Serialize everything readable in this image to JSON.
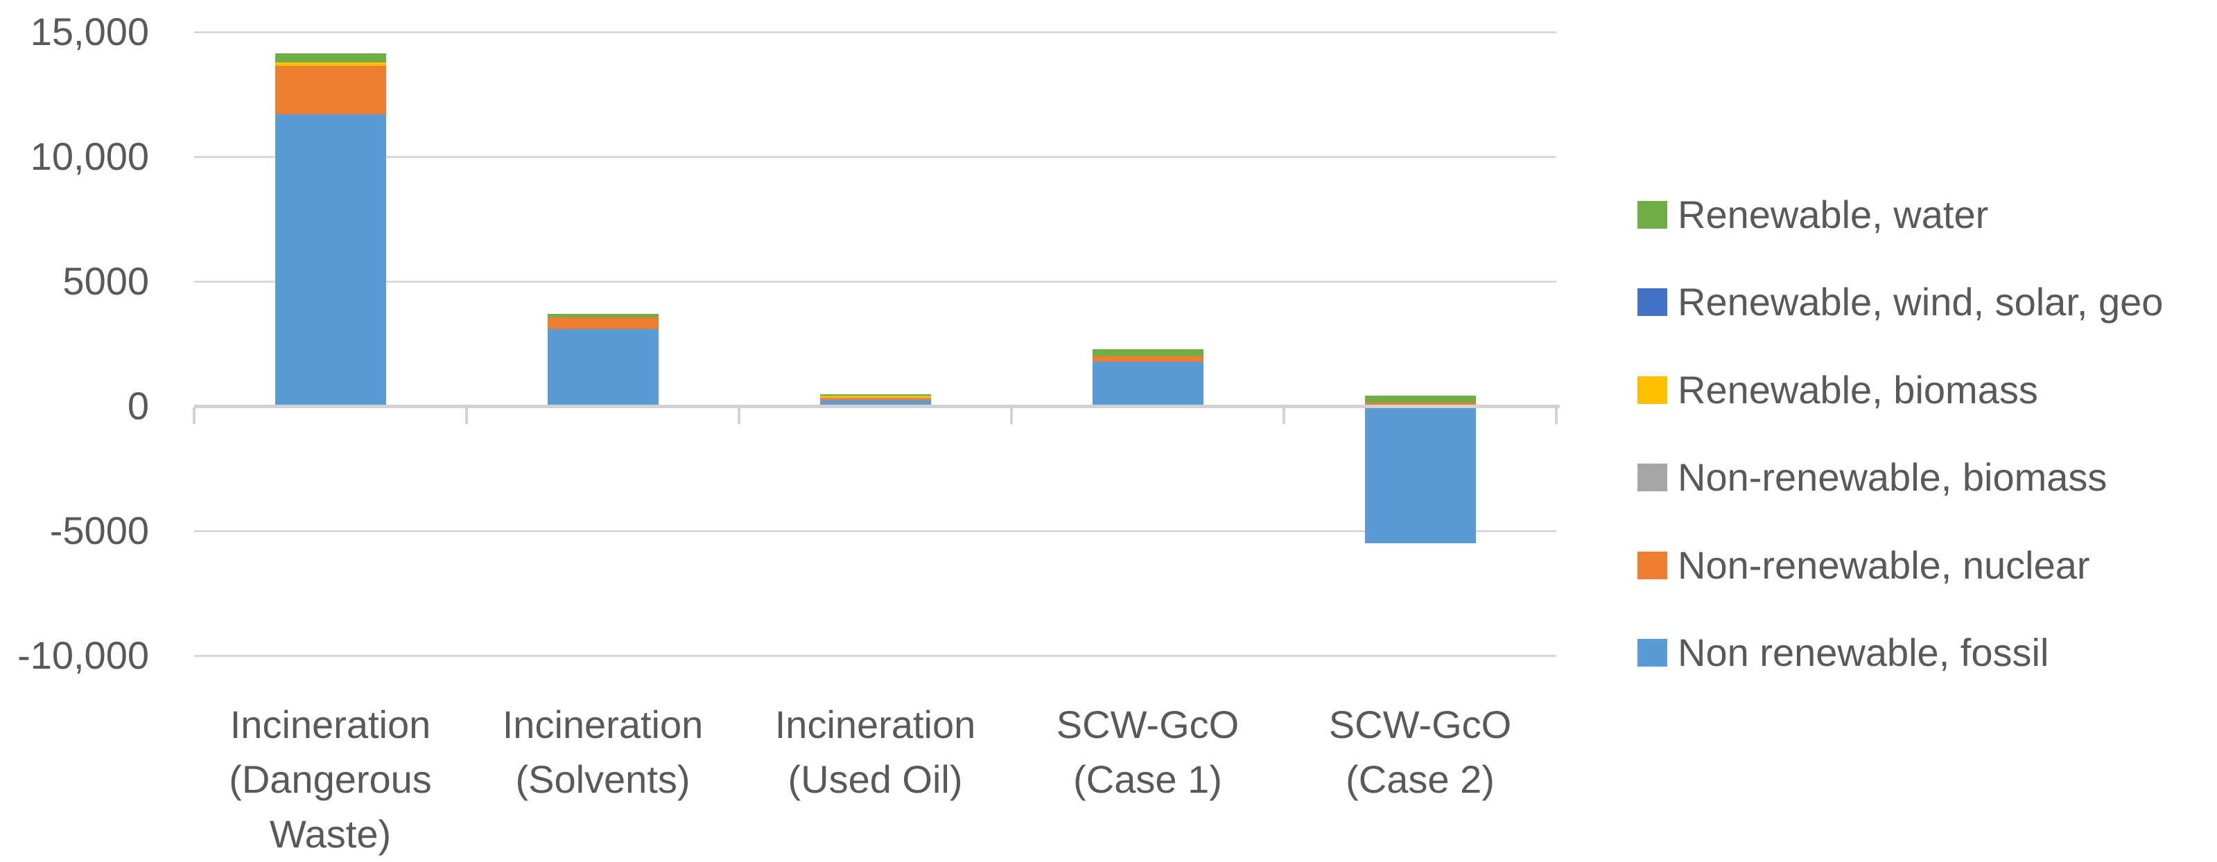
{
  "chart_data": {
    "type": "bar",
    "stacked": true,
    "title": "",
    "orientation": "vertical",
    "categories": [
      "Incineration (Dangerous Waste)",
      "Incineration (Solvents)",
      "Incineration (Used Oil)",
      "SCW-GcO (Case 1)",
      "SCW-GcO (Case 2)"
    ],
    "category_label_lines": [
      [
        "Incineration",
        "(Dangerous",
        "Waste)"
      ],
      [
        "Incineration",
        "(Solvents)"
      ],
      [
        "Incineration",
        "(Used Oil)"
      ],
      [
        "SCW-GcO",
        "(Case 1)"
      ],
      [
        "SCW-GcO",
        "(Case 2)"
      ]
    ],
    "series": [
      {
        "name": "Non renewable, fossil",
        "color": "#5B9BD5",
        "values": [
          11700,
          3080,
          230,
          1780,
          -5500
        ]
      },
      {
        "name": "Non-renewable, nuclear",
        "color": "#ED7D31",
        "values": [
          1950,
          470,
          70,
          220,
          140
        ]
      },
      {
        "name": "Non-renewable, biomass",
        "color": "#A5A5A5",
        "values": [
          0,
          0,
          40,
          0,
          0
        ]
      },
      {
        "name": "Renewable, biomass",
        "color": "#FFC000",
        "values": [
          140,
          0,
          90,
          0,
          0
        ]
      },
      {
        "name": "Renewable, wind, solar, geo",
        "color": "#4472C4",
        "values": [
          0,
          0,
          0,
          0,
          0
        ]
      },
      {
        "name": "Renewable, water",
        "color": "#70AD47",
        "values": [
          360,
          140,
          30,
          280,
          280
        ]
      }
    ],
    "legend": {
      "position": "right",
      "items_top_to_bottom": [
        "Renewable, water",
        "Renewable, wind, solar, geo",
        "Renewable, biomass",
        "Non-renewable, biomass",
        "Non-renewable, nuclear",
        "Non renewable, fossil"
      ]
    },
    "y_axis": {
      "min": -10000,
      "max": 15000,
      "gridlines": true,
      "ticks": [
        {
          "label": "15,000",
          "value": 15000
        },
        {
          "label": "10,000",
          "value": 10000
        },
        {
          "label": "5000",
          "value": 5000
        },
        {
          "label": "0",
          "value": 0
        },
        {
          "label": "-5000",
          "value": -5000
        },
        {
          "label": "-10,000",
          "value": -10000
        }
      ]
    },
    "colors": {
      "background": "#FFFFFF",
      "gridline": "#DADADA",
      "axis_line": "#D2D2D2",
      "text": "#595959"
    }
  }
}
